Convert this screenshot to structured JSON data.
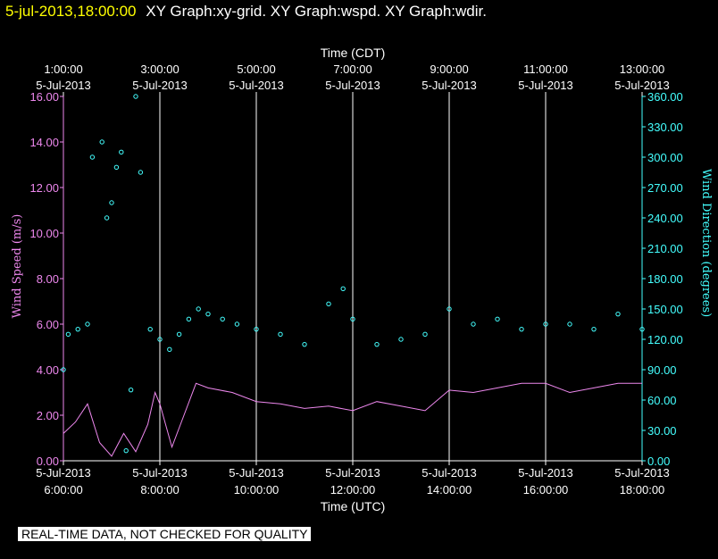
{
  "header": {
    "timestamp": "5-jul-2013,18:00:00",
    "title": "XY Graph:xy-grid.  XY Graph:wspd.  XY Graph:wdir."
  },
  "footer_note": "REAL-TIME DATA, NOT CHECKED FOR QUALITY",
  "colors": {
    "background": "#000000",
    "wind_speed": "#ee88ee",
    "wind_direction": "#44ffff",
    "timestamp": "#ffff00",
    "grid": "#ffffff"
  },
  "chart_data": {
    "type": "line",
    "xlabel_bottom": "Time (UTC)",
    "xlabel_top": "Time (CDT)",
    "ylabel_left": "Wind Speed (m/s)",
    "ylabel_right": "Wind Direction (degrees)",
    "xlim_utc_hours": [
      6,
      18
    ],
    "ylim_left": [
      0,
      16
    ],
    "ylim_right": [
      0,
      360
    ],
    "grid": "vertical lines at even UTC hours",
    "bottom_ticks": [
      {
        "t": 6,
        "date": "5-Jul-2013",
        "time": "6:00:00"
      },
      {
        "t": 8,
        "date": "5-Jul-2013",
        "time": "8:00:00"
      },
      {
        "t": 10,
        "date": "5-Jul-2013",
        "time": "10:00:00"
      },
      {
        "t": 12,
        "date": "5-Jul-2013",
        "time": "12:00:00"
      },
      {
        "t": 14,
        "date": "5-Jul-2013",
        "time": "14:00:00"
      },
      {
        "t": 16,
        "date": "5-Jul-2013",
        "time": "16:00:00"
      },
      {
        "t": 18,
        "date": "5-Jul-2013",
        "time": "18:00:00"
      }
    ],
    "top_ticks": [
      {
        "t": 6,
        "time": "1:00:00",
        "date": "5-Jul-2013"
      },
      {
        "t": 8,
        "time": "3:00:00",
        "date": "5-Jul-2013"
      },
      {
        "t": 10,
        "time": "5:00:00",
        "date": "5-Jul-2013"
      },
      {
        "t": 12,
        "time": "7:00:00",
        "date": "5-Jul-2013"
      },
      {
        "t": 14,
        "time": "9:00:00",
        "date": "5-Jul-2013"
      },
      {
        "t": 16,
        "time": "11:00:00",
        "date": "5-Jul-2013"
      },
      {
        "t": 18,
        "time": "13:00:00",
        "date": "5-Jul-2013"
      }
    ],
    "left_ticks": [
      "0.00",
      "2.00",
      "4.00",
      "6.00",
      "8.00",
      "10.00",
      "12.00",
      "14.00",
      "16.00"
    ],
    "right_ticks": [
      "0.00",
      "30.00",
      "60.00",
      "90.00",
      "120.00",
      "150.00",
      "180.00",
      "210.00",
      "240.00",
      "270.00",
      "300.00",
      "330.00",
      "360.00"
    ],
    "series": [
      {
        "key": "wspd",
        "style": "line",
        "axis": "left",
        "x": [
          6.0,
          6.25,
          6.5,
          6.75,
          7.0,
          7.25,
          7.5,
          7.75,
          7.9,
          8.0,
          8.25,
          8.5,
          8.75,
          9.0,
          9.5,
          10.0,
          10.5,
          11.0,
          11.5,
          12.0,
          12.5,
          13.0,
          13.5,
          14.0,
          14.5,
          15.0,
          15.5,
          16.0,
          16.5,
          17.0,
          17.5,
          18.0
        ],
        "values": [
          1.2,
          1.7,
          2.5,
          0.8,
          0.2,
          1.2,
          0.4,
          1.6,
          3.0,
          2.5,
          0.6,
          2.0,
          3.4,
          3.2,
          3.0,
          2.6,
          2.5,
          2.3,
          2.4,
          2.2,
          2.6,
          2.4,
          2.2,
          3.1,
          3.0,
          3.2,
          3.4,
          3.4,
          3.0,
          3.2,
          3.4,
          3.4
        ]
      },
      {
        "key": "wdir",
        "style": "scatter",
        "axis": "right",
        "x": [
          6.0,
          6.1,
          6.3,
          6.5,
          6.6,
          6.8,
          6.9,
          7.0,
          7.1,
          7.2,
          7.3,
          7.4,
          7.5,
          7.6,
          7.8,
          8.0,
          8.2,
          8.4,
          8.6,
          8.8,
          9.0,
          9.3,
          9.6,
          10.0,
          10.5,
          11.0,
          11.5,
          11.8,
          12.0,
          12.5,
          13.0,
          13.5,
          14.0,
          14.5,
          15.0,
          15.5,
          16.0,
          16.5,
          17.0,
          17.5,
          18.0
        ],
        "values": [
          90,
          125,
          130,
          135,
          300,
          315,
          240,
          255,
          290,
          305,
          10,
          70,
          360,
          285,
          130,
          120,
          110,
          125,
          140,
          150,
          145,
          140,
          135,
          130,
          125,
          115,
          155,
          170,
          140,
          115,
          120,
          125,
          150,
          135,
          140,
          130,
          135,
          135,
          130,
          145,
          130
        ]
      }
    ]
  }
}
